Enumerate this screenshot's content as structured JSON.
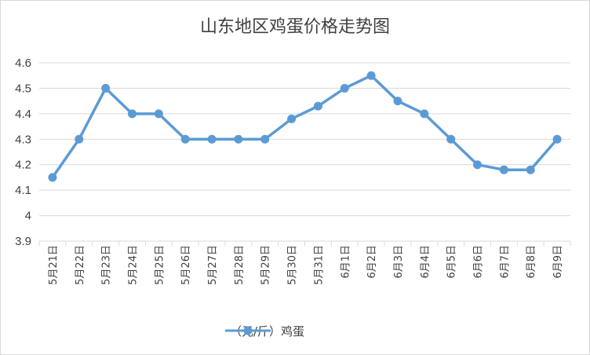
{
  "chart_data": {
    "type": "line",
    "title": "山东地区鸡蛋价格走势图",
    "xlabel": "",
    "ylabel": "",
    "ylim": [
      3.9,
      4.6
    ],
    "yticks": [
      "4.6",
      "4.5",
      "4.4",
      "4.3",
      "4.2",
      "4.1",
      "4",
      "3.9"
    ],
    "categories": [
      "5月21日",
      "5月22日",
      "5月23日",
      "5月24日",
      "5月25日",
      "5月26日",
      "5月27日",
      "5月28日",
      "5月29日",
      "5月30日",
      "5月31日",
      "6月1日",
      "6月2日",
      "6月3日",
      "6月4日",
      "6月5日",
      "6月6日",
      "6月7日",
      "6月8日",
      "6月9日"
    ],
    "series": [
      {
        "name": "（元/斤）鸡蛋",
        "color": "#5b9bd5",
        "values": [
          4.15,
          4.3,
          4.5,
          4.4,
          4.4,
          4.3,
          4.3,
          4.3,
          4.3,
          4.38,
          4.43,
          4.5,
          4.55,
          4.45,
          4.4,
          4.3,
          4.2,
          4.18,
          4.18,
          4.3
        ]
      }
    ],
    "grid": true,
    "legend_position": "bottom"
  }
}
